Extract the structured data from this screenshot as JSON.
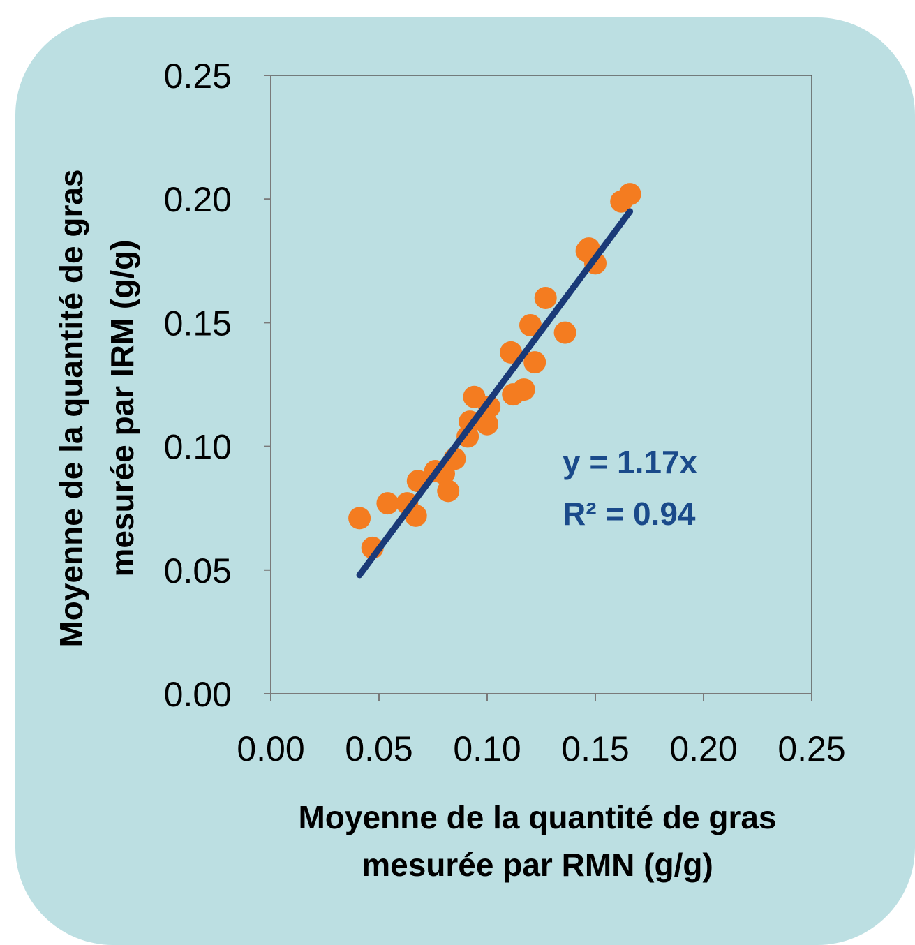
{
  "chart_data": {
    "type": "scatter",
    "title": "",
    "xlabel": [
      "Moyenne de la quantité de gras",
      "mesurée par RMN (g/g)"
    ],
    "ylabel": [
      "Moyenne de la quantité de gras",
      "mesurée par IRM (g/g)"
    ],
    "xlim": [
      0,
      0.25
    ],
    "ylim": [
      0,
      0.25
    ],
    "x_ticks": [
      "0.00",
      "0.05",
      "0.10",
      "0.15",
      "0.20",
      "0.25"
    ],
    "y_ticks": [
      "0.00",
      "0.05",
      "0.10",
      "0.15",
      "0.20",
      "0.25"
    ],
    "grid": false,
    "points": {
      "color": "#f47c20",
      "x": [
        0.041,
        0.047,
        0.054,
        0.063,
        0.067,
        0.068,
        0.076,
        0.08,
        0.082,
        0.085,
        0.091,
        0.092,
        0.094,
        0.1,
        0.101,
        0.111,
        0.112,
        0.117,
        0.12,
        0.122,
        0.127,
        0.136,
        0.146,
        0.147,
        0.15,
        0.162,
        0.166
      ],
      "y": [
        0.071,
        0.059,
        0.077,
        0.077,
        0.072,
        0.086,
        0.09,
        0.089,
        0.082,
        0.095,
        0.104,
        0.11,
        0.12,
        0.109,
        0.116,
        0.138,
        0.121,
        0.123,
        0.149,
        0.134,
        0.16,
        0.146,
        0.179,
        0.18,
        0.174,
        0.199,
        0.202
      ]
    },
    "trendline": {
      "color": "#1a3a78",
      "x": [
        0.041,
        0.166
      ],
      "y": [
        0.048,
        0.195
      ]
    },
    "annotation": {
      "equation": "y = 1.17x",
      "r_squared": "R² = 0.94",
      "color": "#1a4a8a"
    }
  }
}
